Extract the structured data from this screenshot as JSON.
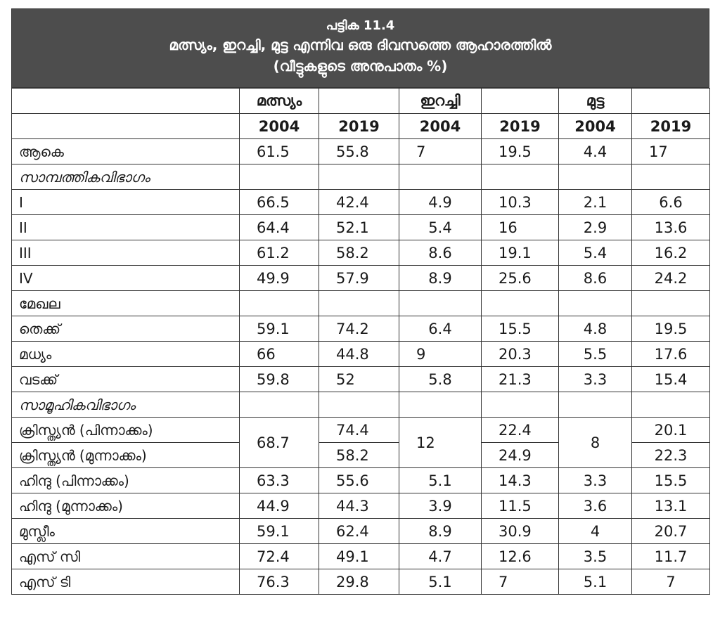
{
  "table": {
    "title_number": "പട്ടിക 11.4",
    "title_line1": "മത്സ്യം, ഇറച്ചി, മുട്ട എന്നിവ ഒരു ദിവസത്തെ ആഹാരത്തിൽ",
    "title_line2": "(വീട്ടുകളുടെ അനുപാതം %)",
    "groups": [
      "മത്സ്യം",
      "ഇറച്ചി",
      "മുട്ട"
    ],
    "years": [
      "2004",
      "2019",
      "2004",
      "2019",
      "2004",
      "2019"
    ],
    "rows": {
      "total": {
        "label": "ആകെ",
        "values": [
          "61.5",
          "55.8",
          "7",
          "19.5",
          "4.4",
          "17"
        ]
      },
      "econ_header": {
        "label": "സാമ്പത്തികവിഭാഗം"
      },
      "econ_1": {
        "label": "I",
        "values": [
          "66.5",
          "42.4",
          "4.9",
          "10.3",
          "2.1",
          "6.6"
        ]
      },
      "econ_2": {
        "label": "II",
        "values": [
          "64.4",
          "52.1",
          "5.4",
          "16",
          "2.9",
          "13.6"
        ]
      },
      "econ_3": {
        "label": "III",
        "values": [
          "61.2",
          "58.2",
          "8.6",
          "19.1",
          "5.4",
          "16.2"
        ]
      },
      "econ_4": {
        "label": "IV",
        "values": [
          "49.9",
          "57.9",
          "8.9",
          "25.6",
          "8.6",
          "24.2"
        ]
      },
      "region_header": {
        "label": "മേഖല"
      },
      "south": {
        "label": "തെക്ക്",
        "values": [
          "59.1",
          "74.2",
          "6.4",
          "15.5",
          "4.8",
          "19.5"
        ]
      },
      "central": {
        "label": "മധ്യം",
        "values": [
          "66",
          "44.8",
          "9",
          "20.3",
          "5.5",
          "17.6"
        ]
      },
      "north": {
        "label": "വടക്ക്",
        "values": [
          "59.8",
          "52",
          "5.8",
          "21.3",
          "3.3",
          "15.4"
        ]
      },
      "social_header": {
        "label": "സാമൂഹികവിഭാഗം"
      },
      "christian_backward": {
        "label": "ക്രിസ്ത്യൻ (പിന്നാക്കം)",
        "fish_2004_merged": "68.7",
        "fish_2019": "74.4",
        "meat_2004_merged": "12",
        "meat_2019": "22.4",
        "egg_2004_merged": "8",
        "egg_2019": "20.1"
      },
      "christian_forward": {
        "label": "ക്രിസ്ത്യൻ (മുന്നാക്കം)",
        "fish_2019": "58.2",
        "meat_2019": "24.9",
        "egg_2019": "22.3"
      },
      "hindu_backward": {
        "label": "ഹിന്ദു (പിന്നാക്കം)",
        "values": [
          "63.3",
          "55.6",
          "5.1",
          "14.3",
          "3.3",
          "15.5"
        ]
      },
      "hindu_forward": {
        "label": "ഹിന്ദു (മുന്നാക്കം)",
        "values": [
          "44.9",
          "44.3",
          "3.9",
          "11.5",
          "3.6",
          "13.1"
        ]
      },
      "muslim": {
        "label": "മുസ്ലീം",
        "values": [
          "59.1",
          "62.4",
          "8.9",
          "30.9",
          "4",
          "20.7"
        ]
      },
      "sc": {
        "label": "എസ് സി",
        "values": [
          "72.4",
          "49.1",
          "4.7",
          "12.6",
          "3.5",
          "11.7"
        ]
      },
      "st": {
        "label": "എസ് ടി",
        "values": [
          "76.3",
          "29.8",
          "5.1",
          "7",
          "5.1",
          "7"
        ]
      }
    }
  }
}
